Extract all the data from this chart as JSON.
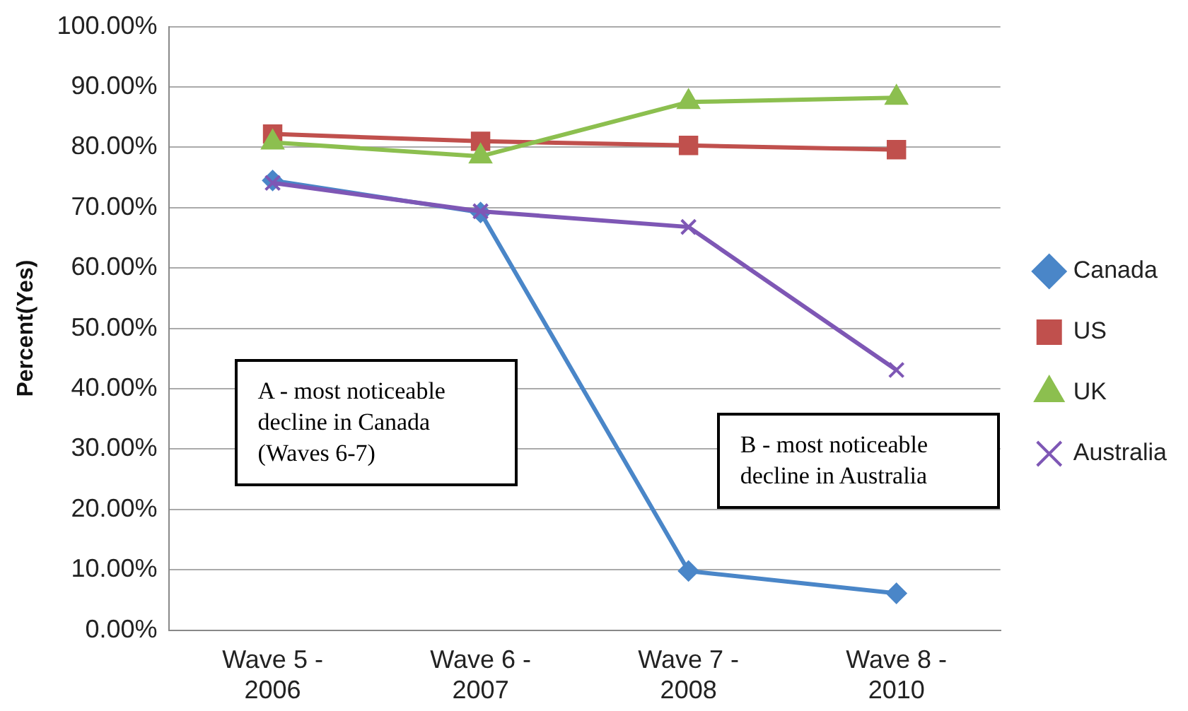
{
  "chart_data": {
    "type": "line",
    "ylabel": "Percent(Yes)",
    "categories": [
      "Wave 5 - 2006",
      "Wave 6 - 2007",
      "Wave 7 - 2008",
      "Wave 8 - 2010"
    ],
    "series": [
      {
        "name": "Canada",
        "color": "#4a86c8",
        "marker": "diamond",
        "values": [
          74.5,
          69.2,
          9.8,
          6.1
        ]
      },
      {
        "name": "US",
        "color": "#c0504d",
        "marker": "square",
        "values": [
          82.2,
          81,
          80.3,
          79.6
        ]
      },
      {
        "name": "UK",
        "color": "#8cbf4f",
        "marker": "triangle",
        "values": [
          80.8,
          78.5,
          87.5,
          88.2
        ]
      },
      {
        "name": "Australia",
        "color": "#7e57b5",
        "marker": "cross",
        "values": [
          74.1,
          69.4,
          66.8,
          43.1
        ]
      }
    ],
    "ylim": [
      0,
      100
    ],
    "yticks": [
      {
        "value": 0,
        "label": "0.00%"
      },
      {
        "value": 10,
        "label": "10.00%"
      },
      {
        "value": 20,
        "label": "20.00%"
      },
      {
        "value": 30,
        "label": "30.00%"
      },
      {
        "value": 40,
        "label": "40.00%"
      },
      {
        "value": 50,
        "label": "50.00%"
      },
      {
        "value": 60,
        "label": "60.00%"
      },
      {
        "value": 70,
        "label": "70.00%"
      },
      {
        "value": 80,
        "label": "80.00%"
      },
      {
        "value": 90,
        "label": "90.00%"
      },
      {
        "value": 100,
        "label": "100.00%"
      }
    ],
    "grid": "y",
    "legend": "right",
    "line_style": "solid",
    "annotations": [
      "A - most noticeable decline in Canada (Waves 6-7)",
      "B - most noticeable decline in Australia"
    ]
  }
}
